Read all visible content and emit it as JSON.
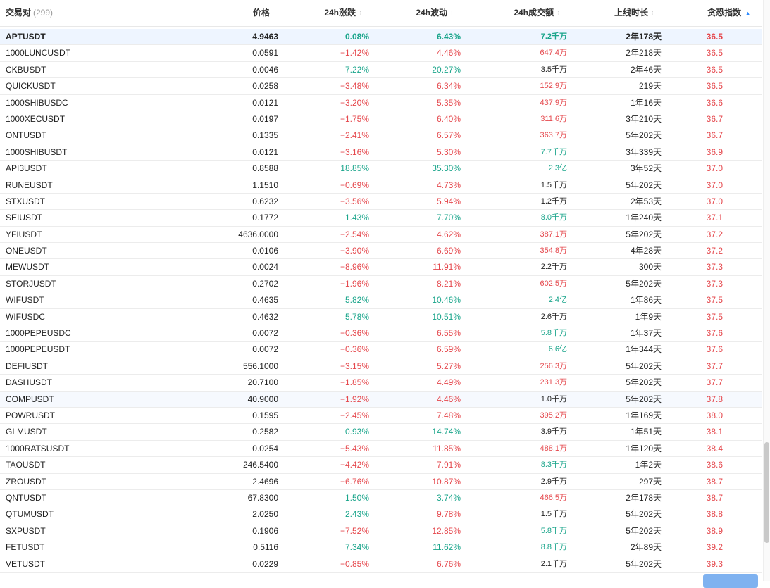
{
  "header": {
    "symbol_label": "交易对",
    "symbol_count": "(299)",
    "price_label": "价格",
    "change_label": "24h涨跌",
    "volatility_label": "24h波动",
    "turnover_label": "24h成交额",
    "age_label": "上线时长",
    "fear_greed_label": "贪恐指数",
    "sort_icon": "sort-icon",
    "sort_active_icon": "sort-asc-icon"
  },
  "colors": {
    "positive": "#1aa58b",
    "negative": "#e5484d",
    "highlight": "#eef5ff",
    "accent": "#2f8cff"
  },
  "rows": [
    {
      "symbol": "APTUSDT",
      "price": "4.9463",
      "change": "0.08%",
      "volatility": "6.43%",
      "turnover": "7.2千万",
      "age": "2年178天",
      "fg": "36.5",
      "cd": "pos",
      "vd": "pos",
      "td": "pos",
      "hl": "hl"
    },
    {
      "symbol": "1000LUNCUSDT",
      "price": "0.0591",
      "change": "−1.42%",
      "volatility": "4.46%",
      "turnover": "647.4万",
      "age": "2年218天",
      "fg": "36.5",
      "cd": "neg",
      "vd": "neg",
      "td": "neg",
      "hl": ""
    },
    {
      "symbol": "CKBUSDT",
      "price": "0.0046",
      "change": "7.22%",
      "volatility": "20.27%",
      "turnover": "3.5千万",
      "age": "2年46天",
      "fg": "36.5",
      "cd": "pos",
      "vd": "pos",
      "td": "neu",
      "hl": ""
    },
    {
      "symbol": "QUICKUSDT",
      "price": "0.0258",
      "change": "−3.48%",
      "volatility": "6.34%",
      "turnover": "152.9万",
      "age": "219天",
      "fg": "36.5",
      "cd": "neg",
      "vd": "neg",
      "td": "neg",
      "hl": ""
    },
    {
      "symbol": "1000SHIBUSDC",
      "price": "0.0121",
      "change": "−3.20%",
      "volatility": "5.35%",
      "turnover": "437.9万",
      "age": "1年16天",
      "fg": "36.6",
      "cd": "neg",
      "vd": "neg",
      "td": "neg",
      "hl": ""
    },
    {
      "symbol": "1000XECUSDT",
      "price": "0.0197",
      "change": "−1.75%",
      "volatility": "6.40%",
      "turnover": "311.6万",
      "age": "3年210天",
      "fg": "36.7",
      "cd": "neg",
      "vd": "neg",
      "td": "neg",
      "hl": ""
    },
    {
      "symbol": "ONTUSDT",
      "price": "0.1335",
      "change": "−2.41%",
      "volatility": "6.57%",
      "turnover": "363.7万",
      "age": "5年202天",
      "fg": "36.7",
      "cd": "neg",
      "vd": "neg",
      "td": "neg",
      "hl": ""
    },
    {
      "symbol": "1000SHIBUSDT",
      "price": "0.0121",
      "change": "−3.16%",
      "volatility": "5.30%",
      "turnover": "7.7千万",
      "age": "3年339天",
      "fg": "36.9",
      "cd": "neg",
      "vd": "neg",
      "td": "pos",
      "hl": ""
    },
    {
      "symbol": "API3USDT",
      "price": "0.8588",
      "change": "18.85%",
      "volatility": "35.30%",
      "turnover": "2.3亿",
      "age": "3年52天",
      "fg": "37.0",
      "cd": "pos",
      "vd": "pos",
      "td": "pos",
      "hl": ""
    },
    {
      "symbol": "RUNEUSDT",
      "price": "1.1510",
      "change": "−0.69%",
      "volatility": "4.73%",
      "turnover": "1.5千万",
      "age": "5年202天",
      "fg": "37.0",
      "cd": "neg",
      "vd": "neg",
      "td": "neu",
      "hl": ""
    },
    {
      "symbol": "STXUSDT",
      "price": "0.6232",
      "change": "−3.56%",
      "volatility": "5.94%",
      "turnover": "1.2千万",
      "age": "2年53天",
      "fg": "37.0",
      "cd": "neg",
      "vd": "neg",
      "td": "neu",
      "hl": ""
    },
    {
      "symbol": "SEIUSDT",
      "price": "0.1772",
      "change": "1.43%",
      "volatility": "7.70%",
      "turnover": "8.0千万",
      "age": "1年240天",
      "fg": "37.1",
      "cd": "pos",
      "vd": "pos",
      "td": "pos",
      "hl": ""
    },
    {
      "symbol": "YFIUSDT",
      "price": "4636.0000",
      "change": "−2.54%",
      "volatility": "4.62%",
      "turnover": "387.1万",
      "age": "5年202天",
      "fg": "37.2",
      "cd": "neg",
      "vd": "neg",
      "td": "neg",
      "hl": ""
    },
    {
      "symbol": "ONEUSDT",
      "price": "0.0106",
      "change": "−3.90%",
      "volatility": "6.69%",
      "turnover": "354.8万",
      "age": "4年28天",
      "fg": "37.2",
      "cd": "neg",
      "vd": "neg",
      "td": "neg",
      "hl": ""
    },
    {
      "symbol": "MEWUSDT",
      "price": "0.0024",
      "change": "−8.96%",
      "volatility": "11.91%",
      "turnover": "2.2千万",
      "age": "300天",
      "fg": "37.3",
      "cd": "neg",
      "vd": "neg",
      "td": "neu",
      "hl": ""
    },
    {
      "symbol": "STORJUSDT",
      "price": "0.2702",
      "change": "−1.96%",
      "volatility": "8.21%",
      "turnover": "602.5万",
      "age": "5年202天",
      "fg": "37.3",
      "cd": "neg",
      "vd": "neg",
      "td": "neg",
      "hl": ""
    },
    {
      "symbol": "WIFUSDT",
      "price": "0.4635",
      "change": "5.82%",
      "volatility": "10.46%",
      "turnover": "2.4亿",
      "age": "1年86天",
      "fg": "37.5",
      "cd": "pos",
      "vd": "pos",
      "td": "pos",
      "hl": ""
    },
    {
      "symbol": "WIFUSDC",
      "price": "0.4632",
      "change": "5.78%",
      "volatility": "10.51%",
      "turnover": "2.6千万",
      "age": "1年9天",
      "fg": "37.5",
      "cd": "pos",
      "vd": "pos",
      "td": "neu",
      "hl": ""
    },
    {
      "symbol": "1000PEPEUSDC",
      "price": "0.0072",
      "change": "−0.36%",
      "volatility": "6.55%",
      "turnover": "5.8千万",
      "age": "1年37天",
      "fg": "37.6",
      "cd": "neg",
      "vd": "neg",
      "td": "pos",
      "hl": ""
    },
    {
      "symbol": "1000PEPEUSDT",
      "price": "0.0072",
      "change": "−0.36%",
      "volatility": "6.59%",
      "turnover": "6.6亿",
      "age": "1年344天",
      "fg": "37.6",
      "cd": "neg",
      "vd": "neg",
      "td": "pos",
      "hl": ""
    },
    {
      "symbol": "DEFIUSDT",
      "price": "556.1000",
      "change": "−3.15%",
      "volatility": "5.27%",
      "turnover": "256.3万",
      "age": "5年202天",
      "fg": "37.7",
      "cd": "neg",
      "vd": "neg",
      "td": "neg",
      "hl": ""
    },
    {
      "symbol": "DASHUSDT",
      "price": "20.7100",
      "change": "−1.85%",
      "volatility": "4.49%",
      "turnover": "231.3万",
      "age": "5年202天",
      "fg": "37.7",
      "cd": "neg",
      "vd": "neg",
      "td": "neg",
      "hl": ""
    },
    {
      "symbol": "COMPUSDT",
      "price": "40.9000",
      "change": "−1.92%",
      "volatility": "4.46%",
      "turnover": "1.0千万",
      "age": "5年202天",
      "fg": "37.8",
      "cd": "neg",
      "vd": "neg",
      "td": "neu",
      "hl": "hl2"
    },
    {
      "symbol": "POWRUSDT",
      "price": "0.1595",
      "change": "−2.45%",
      "volatility": "7.48%",
      "turnover": "395.2万",
      "age": "1年169天",
      "fg": "38.0",
      "cd": "neg",
      "vd": "neg",
      "td": "neg",
      "hl": ""
    },
    {
      "symbol": "GLMUSDT",
      "price": "0.2582",
      "change": "0.93%",
      "volatility": "14.74%",
      "turnover": "3.9千万",
      "age": "1年51天",
      "fg": "38.1",
      "cd": "pos",
      "vd": "pos",
      "td": "neu",
      "hl": ""
    },
    {
      "symbol": "1000RATSUSDT",
      "price": "0.0254",
      "change": "−5.43%",
      "volatility": "11.85%",
      "turnover": "488.1万",
      "age": "1年120天",
      "fg": "38.4",
      "cd": "neg",
      "vd": "neg",
      "td": "neg",
      "hl": ""
    },
    {
      "symbol": "TAOUSDT",
      "price": "246.5400",
      "change": "−4.42%",
      "volatility": "7.91%",
      "turnover": "8.3千万",
      "age": "1年2天",
      "fg": "38.6",
      "cd": "neg",
      "vd": "neg",
      "td": "pos",
      "hl": ""
    },
    {
      "symbol": "ZROUSDT",
      "price": "2.4696",
      "change": "−6.76%",
      "volatility": "10.87%",
      "turnover": "2.9千万",
      "age": "297天",
      "fg": "38.7",
      "cd": "neg",
      "vd": "neg",
      "td": "neu",
      "hl": ""
    },
    {
      "symbol": "QNTUSDT",
      "price": "67.8300",
      "change": "1.50%",
      "volatility": "3.74%",
      "turnover": "466.5万",
      "age": "2年178天",
      "fg": "38.7",
      "cd": "pos",
      "vd": "pos",
      "td": "neg",
      "hl": ""
    },
    {
      "symbol": "QTUMUSDT",
      "price": "2.0250",
      "change": "2.43%",
      "volatility": "9.78%",
      "turnover": "1.5千万",
      "age": "5年202天",
      "fg": "38.8",
      "cd": "pos",
      "vd": "neg",
      "td": "neu",
      "hl": ""
    },
    {
      "symbol": "SXPUSDT",
      "price": "0.1906",
      "change": "−7.52%",
      "volatility": "12.85%",
      "turnover": "5.8千万",
      "age": "5年202天",
      "fg": "38.9",
      "cd": "neg",
      "vd": "neg",
      "td": "pos",
      "hl": ""
    },
    {
      "symbol": "FETUSDT",
      "price": "0.5116",
      "change": "7.34%",
      "volatility": "11.62%",
      "turnover": "8.8千万",
      "age": "2年89天",
      "fg": "39.2",
      "cd": "pos",
      "vd": "pos",
      "td": "pos",
      "hl": ""
    },
    {
      "symbol": "VETUSDT",
      "price": "0.0229",
      "change": "−0.85%",
      "volatility": "6.76%",
      "turnover": "2.1千万",
      "age": "5年202天",
      "fg": "39.3",
      "cd": "neg",
      "vd": "neg",
      "td": "neu",
      "hl": ""
    }
  ]
}
